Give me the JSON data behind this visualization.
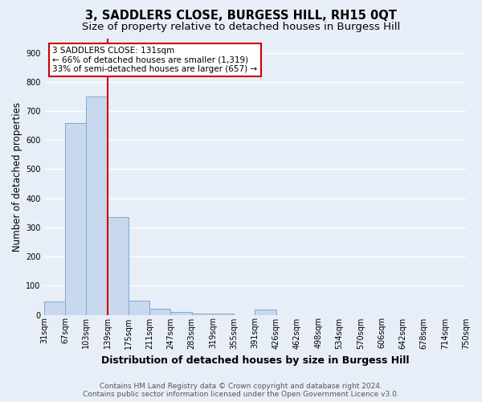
{
  "title": "3, SADDLERS CLOSE, BURGESS HILL, RH15 0QT",
  "subtitle": "Size of property relative to detached houses in Burgess Hill",
  "xlabel": "Distribution of detached houses by size in Burgess Hill",
  "ylabel": "Number of detached properties",
  "bin_labels": [
    "31sqm",
    "67sqm",
    "103sqm",
    "139sqm",
    "175sqm",
    "211sqm",
    "247sqm",
    "283sqm",
    "319sqm",
    "355sqm",
    "391sqm",
    "426sqm",
    "462sqm",
    "498sqm",
    "534sqm",
    "570sqm",
    "606sqm",
    "642sqm",
    "678sqm",
    "714sqm",
    "750sqm"
  ],
  "bar_heights": [
    46,
    659,
    750,
    335,
    49,
    20,
    10,
    5,
    5,
    0,
    18,
    0,
    0,
    0,
    0,
    0,
    0,
    0,
    0,
    0
  ],
  "bar_color": "#c8d8ee",
  "bar_edge_color": "#7baad4",
  "vline_x": 3.0,
  "vline_color": "#cc0000",
  "annotation_text": "3 SADDLERS CLOSE: 131sqm\n← 66% of detached houses are smaller (1,319)\n33% of semi-detached houses are larger (657) →",
  "annotation_box_color": "white",
  "annotation_box_edge_color": "#cc0000",
  "ylim": [
    0,
    950
  ],
  "yticks": [
    0,
    100,
    200,
    300,
    400,
    500,
    600,
    700,
    800,
    900
  ],
  "footer_line1": "Contains HM Land Registry data © Crown copyright and database right 2024.",
  "footer_line2": "Contains public sector information licensed under the Open Government Licence v3.0.",
  "background_color": "#e8eef8",
  "grid_color": "#ffffff",
  "title_fontsize": 10.5,
  "subtitle_fontsize": 9.5,
  "axis_label_fontsize": 8.5,
  "tick_fontsize": 7,
  "footer_fontsize": 6.5,
  "annotation_fontsize": 7.5
}
